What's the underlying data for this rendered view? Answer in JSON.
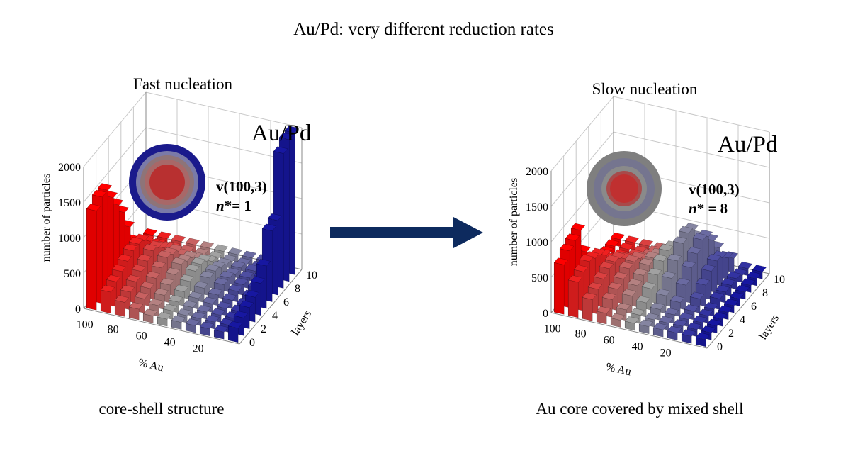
{
  "title": "Au/Pd: very different reduction rates",
  "left": {
    "heading": "Fast nucleation",
    "caption": "core-shell structure",
    "alloy_label": "Au/Pd",
    "param_line": "v(100,3)",
    "nstar_prefix": "n",
    "nstar_suffix": "*= 1"
  },
  "right": {
    "heading": "Slow nucleation",
    "caption": "Au core covered by mixed shell",
    "alloy_label": "Au/Pd",
    "param_line": "v(100,3)",
    "nstar_prefix": "n",
    "nstar_suffix": "* = 8"
  },
  "arrow_color": "#0d2a5e",
  "colors": {
    "au_rich": "#e00000",
    "mixed": "#8c8c8c",
    "pd_rich": "#14148c"
  },
  "chart_data": [
    {
      "type": "bar3d",
      "xlabel": "% Au",
      "ylabel": "layers",
      "zlabel": "number of particles",
      "x_categories": [
        100,
        90,
        80,
        70,
        60,
        50,
        40,
        30,
        20,
        10,
        0
      ],
      "x_ticks": [
        "100",
        "80",
        "60",
        "40",
        "20"
      ],
      "y_categories": [
        0,
        1,
        2,
        3,
        4,
        5,
        6,
        7,
        8,
        9,
        10
      ],
      "y_ticks": [
        "0",
        "2",
        "4",
        "6",
        "8",
        "10"
      ],
      "z_ticks": [
        "0",
        "500",
        "1000",
        "1500",
        "2000"
      ],
      "zlim": [
        0,
        2000
      ],
      "grid": true,
      "values": [
        [
          1400,
          300,
          200,
          150,
          100,
          100,
          100,
          100,
          100,
          100,
          200
        ],
        [
          1500,
          350,
          250,
          200,
          150,
          120,
          100,
          100,
          100,
          100,
          250
        ],
        [
          1500,
          400,
          300,
          250,
          200,
          150,
          120,
          100,
          100,
          100,
          300
        ],
        [
          1300,
          450,
          350,
          300,
          250,
          200,
          150,
          120,
          100,
          100,
          350
        ],
        [
          1100,
          500,
          400,
          350,
          300,
          250,
          200,
          150,
          120,
          100,
          450
        ],
        [
          900,
          500,
          450,
          400,
          350,
          300,
          250,
          200,
          150,
          120,
          600
        ],
        [
          600,
          450,
          400,
          350,
          300,
          300,
          250,
          200,
          150,
          150,
          1000
        ],
        [
          300,
          350,
          300,
          300,
          250,
          250,
          200,
          150,
          150,
          200,
          1050
        ],
        [
          150,
          200,
          200,
          150,
          150,
          150,
          150,
          150,
          150,
          200,
          1900
        ],
        [
          100,
          100,
          100,
          100,
          100,
          100,
          100,
          100,
          100,
          150,
          2000
        ],
        [
          100,
          100,
          100,
          100,
          100,
          100,
          100,
          100,
          100,
          100,
          2000
        ]
      ]
    },
    {
      "type": "bar3d",
      "xlabel": "% Au",
      "ylabel": "layers",
      "zlabel": "number of particles",
      "x_categories": [
        100,
        90,
        80,
        70,
        60,
        50,
        40,
        30,
        20,
        10,
        0
      ],
      "x_ticks": [
        "100",
        "80",
        "60",
        "40",
        "20"
      ],
      "y_categories": [
        0,
        1,
        2,
        3,
        4,
        5,
        6,
        7,
        8,
        9,
        10
      ],
      "y_ticks": [
        "0",
        "2",
        "4",
        "6",
        "8",
        "10"
      ],
      "z_ticks": [
        "0",
        "500",
        "1000",
        "1500",
        "2000"
      ],
      "zlim": [
        0,
        2000
      ],
      "grid": true,
      "values": [
        [
          700,
          500,
          300,
          150,
          100,
          100,
          100,
          100,
          100,
          100,
          100
        ],
        [
          800,
          550,
          350,
          250,
          150,
          120,
          100,
          100,
          100,
          100,
          100
        ],
        [
          850,
          600,
          400,
          300,
          250,
          200,
          150,
          120,
          100,
          100,
          100
        ],
        [
          900,
          550,
          450,
          350,
          300,
          300,
          250,
          200,
          120,
          100,
          100
        ],
        [
          500,
          500,
          450,
          400,
          350,
          400,
          400,
          350,
          200,
          100,
          100
        ],
        [
          300,
          400,
          400,
          400,
          400,
          500,
          550,
          500,
          300,
          150,
          100
        ],
        [
          150,
          250,
          300,
          350,
          400,
          550,
          700,
          600,
          400,
          150,
          100
        ],
        [
          100,
          150,
          200,
          250,
          350,
          500,
          750,
          700,
          450,
          150,
          100
        ],
        [
          100,
          100,
          150,
          200,
          250,
          400,
          700,
          650,
          400,
          150,
          100
        ],
        [
          100,
          100,
          100,
          150,
          200,
          300,
          500,
          500,
          300,
          100,
          100
        ],
        [
          100,
          100,
          100,
          100,
          100,
          200,
          300,
          300,
          200,
          100,
          100
        ]
      ]
    }
  ]
}
